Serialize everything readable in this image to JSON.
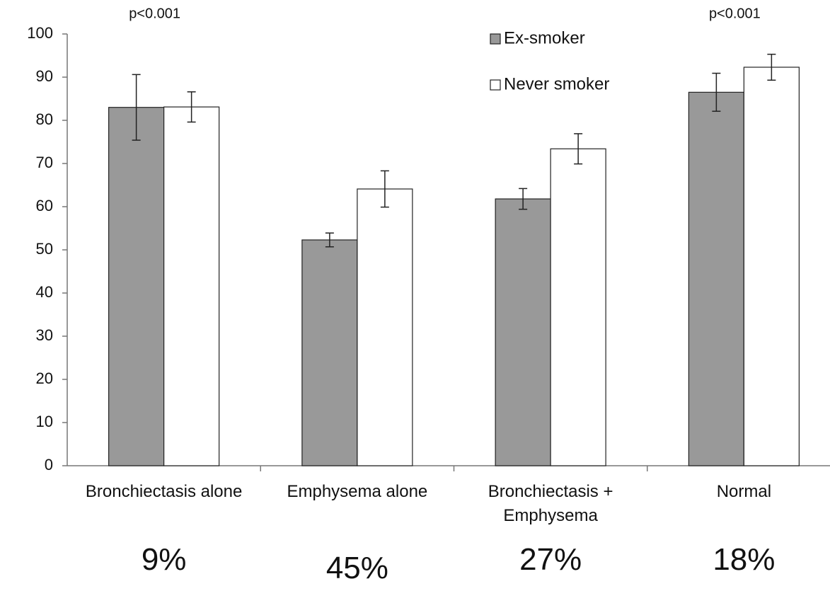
{
  "chart_data": {
    "type": "bar",
    "categories": [
      "Bronchiectasis alone",
      "Emphysema alone",
      "Bronchiectasis + Emphysema",
      "Normal"
    ],
    "series": [
      {
        "name": "Ex-smoker",
        "color": "#999999",
        "values": [
          83,
          52.3,
          61.8,
          86.5
        ],
        "errors": [
          7.6,
          1.6,
          2.4,
          4.4
        ]
      },
      {
        "name": "Never smoker",
        "color": "#ffffff",
        "values": [
          83.1,
          64.1,
          73.4,
          92.3
        ],
        "errors": [
          3.5,
          4.2,
          3.5,
          3
        ]
      }
    ],
    "p_values": [
      "p<0.001",
      null,
      null,
      "p<0.001"
    ],
    "group_percentages": [
      "9%",
      "45%",
      "27%",
      "18%"
    ],
    "ylim": [
      0,
      100
    ],
    "yticks": [
      0,
      10,
      20,
      30,
      40,
      50,
      60,
      70,
      80,
      90,
      100
    ],
    "legend": "top"
  }
}
